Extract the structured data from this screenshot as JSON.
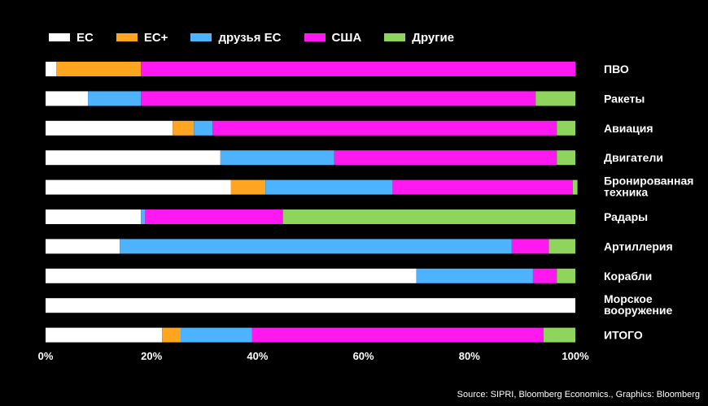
{
  "chart_data": {
    "type": "bar",
    "orientation": "horizontal",
    "stacked": true,
    "percent": true,
    "categories": [
      "ПВО",
      "Ракеты",
      "Авиация",
      "Двигатели",
      "Бронированная техника",
      "Радары",
      "Артиллерия",
      "Корабли",
      "Морское вооружение",
      "ИТОГО"
    ],
    "series": [
      {
        "name": "ЕС",
        "color": "#ffffff",
        "values": [
          2,
          8,
          24,
          33,
          35,
          18,
          14,
          70,
          100,
          22
        ]
      },
      {
        "name": "ЕС+",
        "color": "#ffa520",
        "values": [
          16,
          0,
          4,
          0,
          6.5,
          0,
          0,
          0,
          0,
          3.5
        ]
      },
      {
        "name": "друзья ЕС",
        "color": "#4db3ff",
        "values": [
          0,
          10,
          3.5,
          21.5,
          24,
          0.8,
          74,
          22,
          0,
          13.5
        ]
      },
      {
        "name": "США",
        "color": "#ff18f0",
        "values": [
          82,
          74.5,
          65,
          42,
          34,
          26,
          7,
          4.5,
          0,
          55
        ]
      },
      {
        "name": "Другие",
        "color": "#8fd45d",
        "values": [
          0,
          7.5,
          3.5,
          3.5,
          0.9,
          55.2,
          5,
          3.5,
          0,
          6
        ]
      }
    ],
    "xlim": [
      0,
      100
    ],
    "xticks": [
      "0%",
      "20%",
      "40%",
      "60%",
      "80%",
      "100%"
    ],
    "legend_position": "top-left",
    "category_label_position": "right"
  },
  "source": "Source: SIPRI, Bloomberg Economics., Graphics: Bloomberg"
}
